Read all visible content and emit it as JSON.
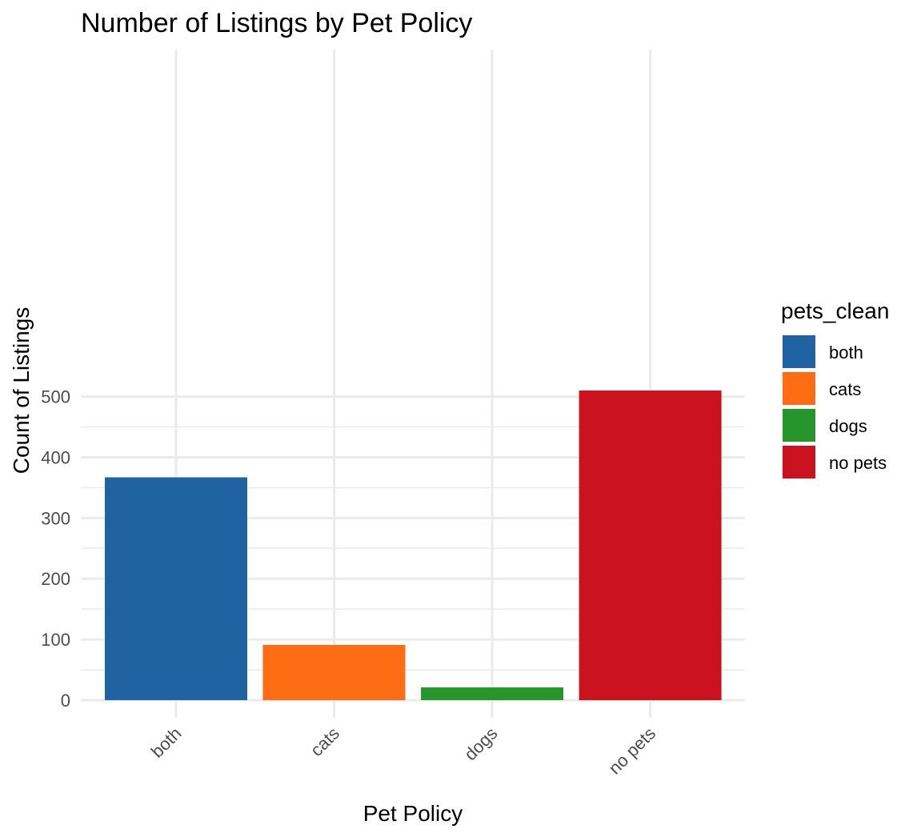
{
  "chart_data": {
    "type": "bar",
    "title": "Number of Listings by Pet Policy",
    "xlabel": "Pet Policy",
    "ylabel": "Count of Listings",
    "categories": [
      "both",
      "cats",
      "dogs",
      "no pets"
    ],
    "values": [
      367,
      91,
      21,
      510
    ],
    "colors": [
      "#1f63a3",
      "#fe6d13",
      "#27962a",
      "#cb121f"
    ],
    "ylim": [
      0,
      535
    ],
    "yticks": [
      0,
      100,
      200,
      300,
      400,
      500
    ],
    "grid": true,
    "x_tick_rotation": "45",
    "legend": {
      "title": "pets_clean",
      "position": "right",
      "entries": [
        "both",
        "cats",
        "dogs",
        "no pets"
      ]
    }
  }
}
